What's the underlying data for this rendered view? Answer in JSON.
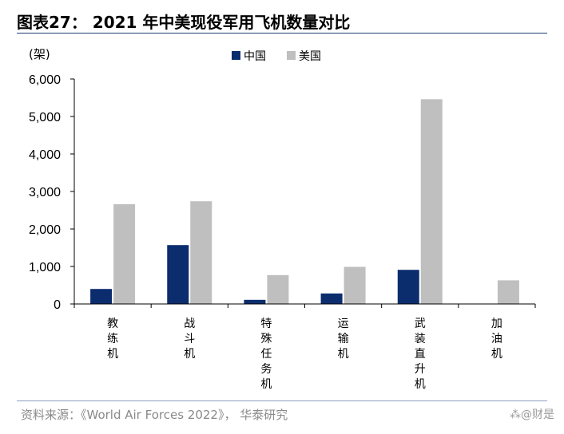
{
  "title": "图表27： 2021 年中美现役军用飞机数量对比",
  "source": "资料来源：《World Air Forces 2022》， 华泰研究",
  "watermark": "⁂@财是",
  "colors": {
    "china": "#0b2d6e",
    "usa": "#bfbfbf",
    "rule": "#1a3f73",
    "axis": "#000000"
  },
  "chart_data": {
    "type": "bar",
    "unit": "(架)",
    "categories": [
      "教练机",
      "战斗机",
      "特殊任务机",
      "运输机",
      "武装直升机",
      "加油机"
    ],
    "series": [
      {
        "name": "中国",
        "values": [
          400,
          1570,
          110,
          280,
          910,
          0
        ]
      },
      {
        "name": "美国",
        "values": [
          2660,
          2740,
          770,
          990,
          5460,
          630
        ]
      }
    ],
    "ylim": [
      0,
      6000
    ],
    "yticks": [
      0,
      1000,
      2000,
      3000,
      4000,
      5000,
      6000
    ],
    "ytick_labels": [
      "0",
      "1,000",
      "2,000",
      "3,000",
      "4,000",
      "5,000",
      "6,000"
    ],
    "legend_position": "top-center",
    "grid": false
  }
}
